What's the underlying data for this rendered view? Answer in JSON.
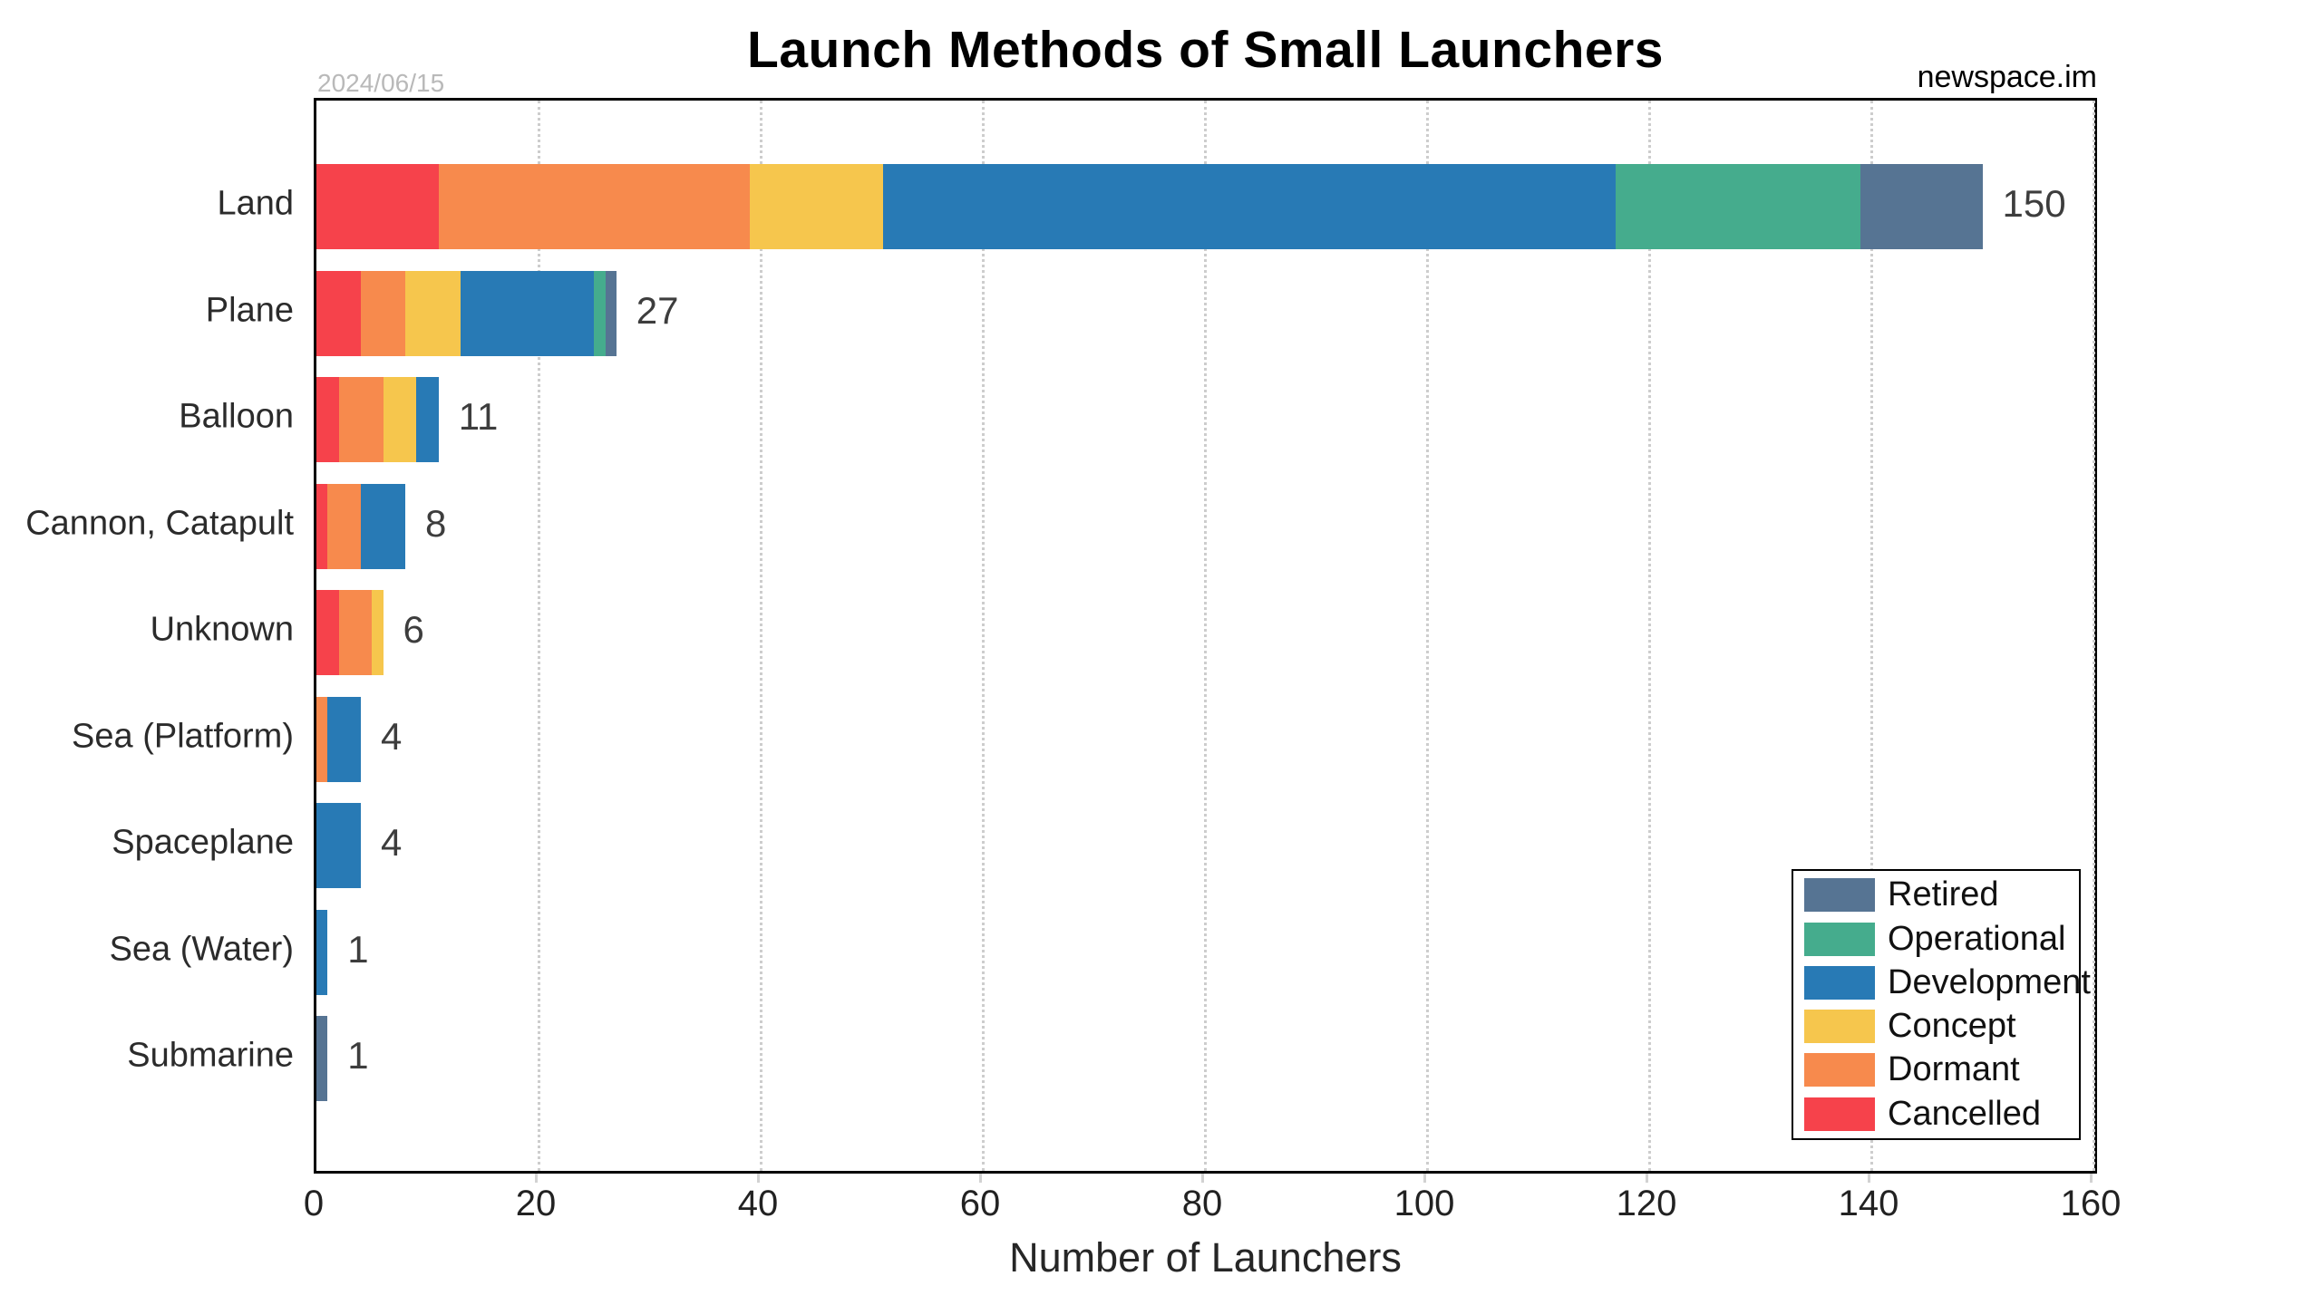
{
  "annotations": {
    "date": "2024/06/15",
    "watermark": "newspace.im"
  },
  "chart_data": {
    "type": "bar",
    "orientation": "horizontal",
    "stacked": true,
    "title": "Launch Methods of Small Launchers",
    "xlabel": "Number of Launchers",
    "categories": [
      "Land",
      "Plane",
      "Balloon",
      "Cannon, Catapult",
      "Unknown",
      "Sea (Platform)",
      "Spaceplane",
      "Sea (Water)",
      "Submarine"
    ],
    "totals": [
      150,
      27,
      11,
      8,
      6,
      4,
      4,
      1,
      1
    ],
    "xlim": [
      0,
      160
    ],
    "xticks": [
      0,
      20,
      40,
      60,
      80,
      100,
      120,
      140,
      160
    ],
    "grid": "dotted-vertical",
    "legend_position": "lower-right",
    "series": [
      {
        "name": "Retired",
        "color": "#567493",
        "values": [
          11,
          1,
          0,
          0,
          0,
          0,
          0,
          0,
          1
        ]
      },
      {
        "name": "Operational",
        "color": "#45ac8d",
        "values": [
          22,
          1,
          0,
          0,
          0,
          0,
          0,
          0,
          0
        ]
      },
      {
        "name": "Development",
        "color": "#287ab5",
        "values": [
          66,
          12,
          2,
          4,
          0,
          3,
          4,
          1,
          0
        ]
      },
      {
        "name": "Concept",
        "color": "#f6c64d",
        "values": [
          12,
          5,
          3,
          0,
          1,
          0,
          0,
          0,
          0
        ]
      },
      {
        "name": "Dormant",
        "color": "#f78a4d",
        "values": [
          28,
          4,
          4,
          3,
          3,
          1,
          0,
          0,
          0
        ]
      },
      {
        "name": "Cancelled",
        "color": "#f6424b",
        "values": [
          11,
          4,
          2,
          1,
          2,
          0,
          0,
          0,
          0
        ]
      }
    ]
  }
}
